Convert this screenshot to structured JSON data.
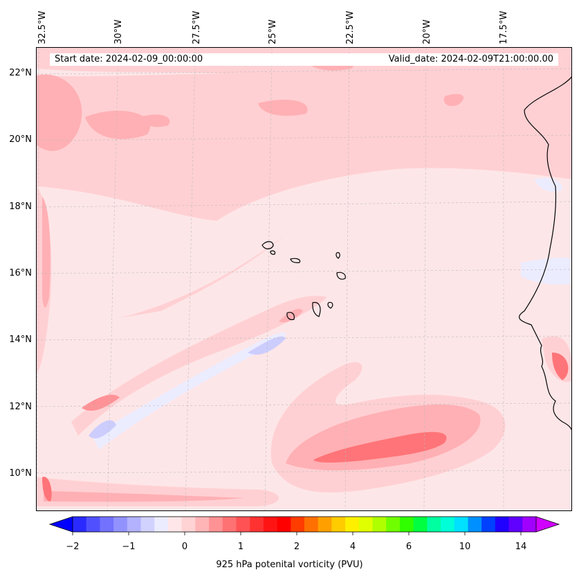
{
  "header": {
    "start_date": "Start date: 2024-02-09_00:00:00",
    "valid_date": "Valid_date: 2024-02-09T21:00:00.00"
  },
  "axes": {
    "longitude_labels": [
      "32.5°W",
      "30°W",
      "27.5°W",
      "25°W",
      "22.5°W",
      "20°W",
      "17.5°W"
    ],
    "latitude_labels": [
      "22°N",
      "20°N",
      "18°N",
      "16°N",
      "14°N",
      "12°N",
      "10°N"
    ]
  },
  "colorbar": {
    "label": "925 hPa potenital vorticity (PVU)",
    "tick_labels": [
      "−2",
      "−1",
      "0",
      "1",
      "2",
      "4",
      "6",
      "10",
      "14"
    ],
    "colors": [
      "#0000ff",
      "#2a2aff",
      "#5050ff",
      "#7272ff",
      "#9292ff",
      "#b2b2ff",
      "#d2d2ff",
      "#ececff",
      "#ffe6e8",
      "#ffd2d4",
      "#ffb4b6",
      "#ff9294",
      "#ff7274",
      "#ff5254",
      "#ff3232",
      "#ff1414",
      "#ff0000",
      "#ff3c00",
      "#ff7000",
      "#ffa000",
      "#ffcc00",
      "#fff000",
      "#e0ff00",
      "#b0ff00",
      "#70ff00",
      "#30ff00",
      "#00ff40",
      "#00ffa0",
      "#00ffd8",
      "#00e0ff",
      "#0090ff",
      "#0040ff",
      "#2000ff",
      "#6000ff",
      "#a000ff",
      "#d000ff"
    ],
    "extend": "both"
  },
  "map": {
    "background_color": "#fde6e8",
    "positive_color": "#ffd0d3",
    "stronger_color": "#ffb0b4",
    "max_color": "#ff7478",
    "negative_color": "#ececff",
    "negative_strong_color": "#cccdfd",
    "coastline_color": "#000000"
  }
}
